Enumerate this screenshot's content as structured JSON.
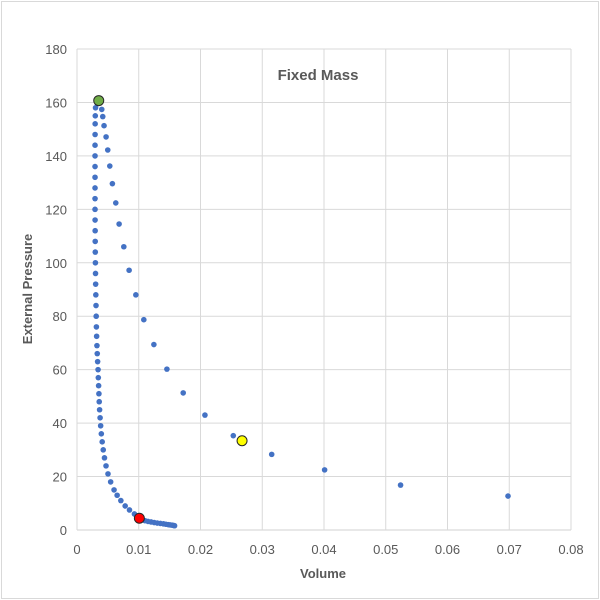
{
  "chart_data": {
    "type": "scatter",
    "title": "Fixed Mass",
    "xlabel": "Volume",
    "ylabel": "External Pressure",
    "xlim": [
      0,
      0.08
    ],
    "ylim": [
      0,
      180
    ],
    "xticks": [
      "0",
      "0.01",
      "0.02",
      "0.03",
      "0.04",
      "0.05",
      "0.06",
      "0.07",
      "0.08"
    ],
    "yticks": [
      "0",
      "20",
      "40",
      "60",
      "80",
      "100",
      "120",
      "140",
      "160",
      "180"
    ],
    "grid": true,
    "legend": "none",
    "colors": {
      "series": "#4472c4",
      "grid": "#d9d9d9",
      "text": "#595959"
    },
    "series": [
      {
        "color": "#4472c4",
        "points": [
          [
            0.00401,
            157.4
          ],
          [
            0.00417,
            154.7
          ],
          [
            0.00438,
            151.3
          ],
          [
            0.00471,
            147.1
          ],
          [
            0.00498,
            142.2
          ],
          [
            0.00531,
            136.2
          ],
          [
            0.00573,
            129.6
          ],
          [
            0.00628,
            122.4
          ],
          [
            0.00682,
            114.5
          ],
          [
            0.00758,
            106.0
          ],
          [
            0.00844,
            97.2
          ],
          [
            0.00953,
            88.0
          ],
          [
            0.01082,
            78.7
          ],
          [
            0.01245,
            69.4
          ],
          [
            0.01456,
            60.2
          ],
          [
            0.0172,
            51.3
          ],
          [
            0.02072,
            43.0
          ],
          [
            0.02531,
            35.3
          ],
          [
            0.03153,
            28.3
          ],
          [
            0.0401,
            22.5
          ],
          [
            0.0524,
            16.8
          ],
          [
            0.0698,
            12.7
          ],
          [
            0.0033,
            159.5
          ],
          [
            0.003,
            158
          ],
          [
            0.00296,
            155
          ],
          [
            0.00294,
            152
          ],
          [
            0.00293,
            148
          ],
          [
            0.00292,
            144
          ],
          [
            0.00292,
            140
          ],
          [
            0.00292,
            136
          ],
          [
            0.00292,
            132
          ],
          [
            0.00292,
            128
          ],
          [
            0.00292,
            124
          ],
          [
            0.00292,
            120
          ],
          [
            0.00293,
            116
          ],
          [
            0.00294,
            112
          ],
          [
            0.00295,
            108
          ],
          [
            0.00296,
            104
          ],
          [
            0.00298,
            100
          ],
          [
            0.003,
            96
          ],
          [
            0.00302,
            92
          ],
          [
            0.00305,
            88
          ],
          [
            0.00308,
            84
          ],
          [
            0.00311,
            80
          ],
          [
            0.00314,
            76
          ],
          [
            0.00318,
            72.5
          ],
          [
            0.00323,
            69
          ],
          [
            0.00328,
            66
          ],
          [
            0.00334,
            63
          ],
          [
            0.00341,
            60
          ],
          [
            0.00345,
            57
          ],
          [
            0.0035,
            54
          ],
          [
            0.00355,
            51
          ],
          [
            0.0036,
            48
          ],
          [
            0.00366,
            45
          ],
          [
            0.00374,
            42
          ],
          [
            0.00383,
            39
          ],
          [
            0.00394,
            36
          ],
          [
            0.00408,
            33
          ],
          [
            0.00425,
            30
          ],
          [
            0.00445,
            27
          ],
          [
            0.0047,
            24
          ],
          [
            0.00502,
            21
          ],
          [
            0.00545,
            18
          ],
          [
            0.006,
            15
          ],
          [
            0.0065,
            13
          ],
          [
            0.0071,
            11
          ],
          [
            0.0078,
            9
          ],
          [
            0.0085,
            7.5
          ],
          [
            0.0093,
            6
          ],
          [
            0.01,
            5
          ],
          [
            0.0105,
            4
          ],
          [
            0.011,
            3.5
          ],
          [
            0.0115,
            3.2
          ],
          [
            0.012,
            3
          ],
          [
            0.0125,
            2.8
          ],
          [
            0.013,
            2.6
          ],
          [
            0.0135,
            2.45
          ],
          [
            0.014,
            2.3
          ],
          [
            0.0144,
            2.15
          ],
          [
            0.0148,
            2
          ],
          [
            0.0151,
            1.9
          ],
          [
            0.0154,
            1.8
          ],
          [
            0.0156,
            1.7
          ],
          [
            0.0158,
            1.6
          ]
        ]
      }
    ],
    "highlights": [
      {
        "x": 0.00352,
        "y": 160.7,
        "color": "#70ad47"
      },
      {
        "x": 0.02673,
        "y": 33.4,
        "color": "#ffff00"
      },
      {
        "x": 0.0101,
        "y": 4.4,
        "color": "#ff0000"
      }
    ]
  }
}
